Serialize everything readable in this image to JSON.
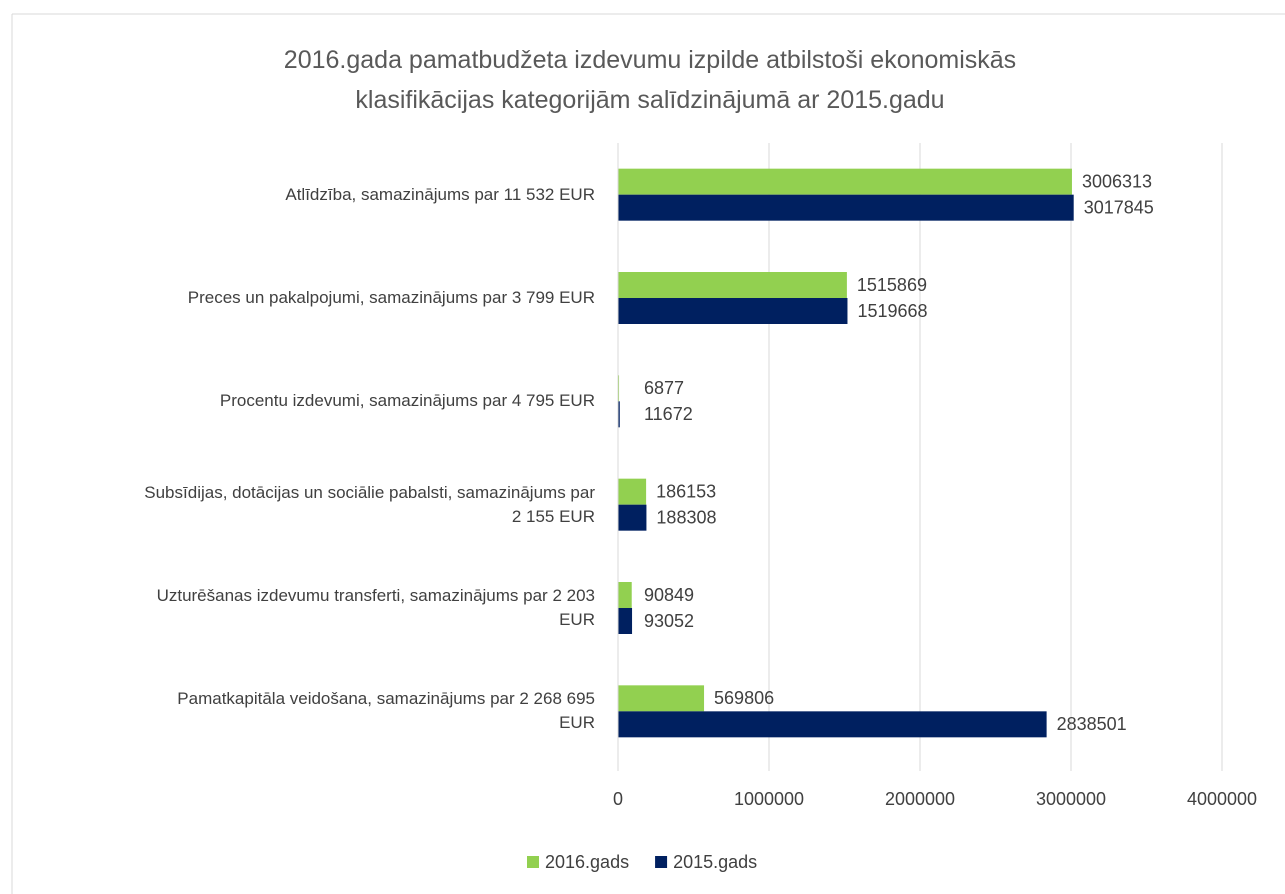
{
  "chart_data": {
    "type": "hbar",
    "title": "2016.gada pamatbudžeta izdevumu izpilde atbilstoši ekonomiskās\nklasifikācijas kategorijām salīdzinājumā ar 2015.gadu",
    "categories": [
      "Atlīdzība, samazinājums par 11 532 EUR",
      "Preces un pakalpojumi, samazinājums par 3 799 EUR",
      "Procentu izdevumi, samazinājums par  4 795 EUR",
      "Subsīdijas, dotācijas un sociālie pabalsti, samazinājums par\n2 155 EUR",
      "Uzturēšanas izdevumu transferti, samazinājums par 2 203\nEUR",
      "Pamatkapitāla veidošana, samazinājums par  2 268 695\nEUR"
    ],
    "series": [
      {
        "name": "2016.gads",
        "color": "#92d050",
        "values": [
          3006313,
          1515869,
          6877,
          186153,
          90849,
          569806
        ]
      },
      {
        "name": "2015.gads",
        "color": "#002060",
        "values": [
          3017845,
          1519668,
          11672,
          188308,
          93052,
          2838501
        ]
      }
    ],
    "xlim": [
      0,
      4000000
    ],
    "xticks": [
      0,
      1000000,
      2000000,
      3000000,
      4000000
    ],
    "grid": true,
    "legend": "bottom"
  }
}
